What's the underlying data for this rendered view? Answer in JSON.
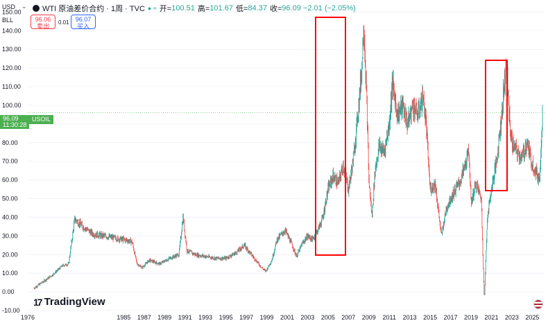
{
  "header": {
    "currency": "USD",
    "dropdown_glyph": "⌄",
    "symbol_title": "WTI 原油差价合约 · 1周 · TVC",
    "indicators": "● ≈",
    "open_label": "开=",
    "open_value": "100.51",
    "high_label": "高=",
    "high_value": "101.67",
    "low_label": "低=",
    "low_value": "84.37",
    "close_label": "收=",
    "close_value": "96.09 −2.01 (−2.05%)"
  },
  "unit_label": "BLL",
  "quotes": {
    "sell_price": "96.06",
    "sell_label": "卖出",
    "spread": "0.01",
    "buy_price": "96.07",
    "buy_label": "买入"
  },
  "last_price": {
    "value": "96.09",
    "time": "11:30:28",
    "symbol": "USOIL"
  },
  "branding": {
    "logo_mark": "17",
    "name": "TradingView"
  },
  "colors": {
    "up": "#26a69a",
    "down": "#ef5350",
    "highlight": "#ff0000",
    "last": "#4caf50"
  },
  "chart_data": {
    "type": "line",
    "title": "",
    "xlabel": "",
    "ylabel": "",
    "ylim": [
      -10,
      152
    ],
    "xlim": [
      1975.6,
      2026.2
    ],
    "y_ticks": [
      -10,
      0,
      10,
      20,
      30,
      40,
      50,
      60,
      70,
      80,
      90,
      100,
      110,
      120,
      130,
      140,
      150
    ],
    "y_tick_labels": [
      "-10.00",
      "0.00",
      "10.00",
      "20.00",
      "30.00",
      "40.00",
      "50.00",
      "60.00",
      "70.00",
      "80.00",
      "90.00",
      "100.00",
      "110.00",
      "120.00",
      "130.00",
      "140.00",
      "150.00"
    ],
    "x_ticks": [
      1976,
      1985,
      1987,
      1989,
      1991,
      1993,
      1995,
      1997,
      1999,
      2001,
      2003,
      2005,
      2007,
      2009,
      2011,
      2013,
      2015,
      2017,
      2019,
      2021,
      2023,
      2025
    ],
    "x_tick_labels": [
      "1976",
      "1985",
      "1987",
      "1989",
      "1991",
      "1993",
      "1995",
      "1997",
      "1999",
      "2001",
      "2003",
      "2005",
      "2007",
      "2009",
      "2011",
      "2013",
      "2015",
      "2017",
      "2019",
      "2021",
      "2023",
      "2025"
    ],
    "series": [
      {
        "x": [
          1976.2,
          1977.0,
          1978.0,
          1979.0,
          1979.6,
          1980.2,
          1981.0,
          1982.0,
          1983.0,
          1984.0,
          1985.0,
          1985.8,
          1986.3,
          1986.8,
          1987.5,
          1988.5,
          1989.5,
          1990.4,
          1990.8,
          1991.2,
          1992.0,
          1993.0,
          1994.0,
          1995.0,
          1996.0,
          1996.8,
          1997.5,
          1998.5,
          1998.9,
          1999.5,
          2000.0,
          2000.8,
          2001.5,
          2001.9,
          2002.5,
          2003.0,
          2003.5,
          2004.0,
          2004.5,
          2005.0,
          2005.5,
          2006.0,
          2006.5,
          2007.0,
          2007.5,
          2008.0,
          2008.3,
          2008.5,
          2008.8,
          2009.0,
          2009.3,
          2009.6,
          2010.0,
          2010.5,
          2011.0,
          2011.3,
          2011.8,
          2012.3,
          2012.8,
          2013.3,
          2013.8,
          2014.3,
          2014.6,
          2015.0,
          2015.5,
          2016.1,
          2016.6,
          2017.0,
          2017.5,
          2018.0,
          2018.8,
          2019.0,
          2019.5,
          2020.0,
          2020.3,
          2020.6,
          2021.0,
          2021.5,
          2022.0,
          2022.45,
          2022.8,
          2023.0,
          2023.5,
          2024.0,
          2024.5,
          2024.9,
          2025.3,
          2025.7,
          2026.0
        ],
        "values": [
          2,
          5,
          9,
          14,
          15,
          39,
          35,
          31,
          30,
          29,
          28,
          27,
          15,
          13,
          17,
          15,
          18,
          20,
          40,
          22,
          20,
          19,
          18,
          18,
          21,
          25,
          20,
          13,
          11,
          17,
          28,
          33,
          25,
          19,
          26,
          30,
          28,
          33,
          40,
          55,
          62,
          58,
          68,
          55,
          72,
          100,
          120,
          145,
          100,
          60,
          40,
          65,
          78,
          75,
          90,
          112,
          95,
          100,
          90,
          100,
          95,
          105,
          90,
          55,
          58,
          30,
          45,
          50,
          55,
          60,
          75,
          48,
          58,
          50,
          -5,
          40,
          55,
          70,
          95,
          123,
          90,
          80,
          75,
          72,
          80,
          70,
          65,
          60,
          96
        ]
      }
    ]
  }
}
